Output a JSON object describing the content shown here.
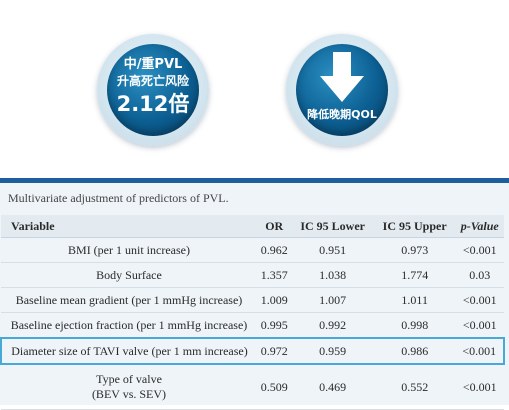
{
  "left_badge": {
    "line1": "中/重PVL",
    "line2": "升高死亡风险",
    "value": "2.12倍"
  },
  "right_badge": {
    "label": "降低晚期QOL",
    "icon": "down-arrow-icon"
  },
  "table": {
    "caption": "Multivariate adjustment of predictors of PVL.",
    "headers": [
      "Variable",
      "OR",
      "IC 95 Lower",
      "IC 95 Upper",
      "p-Value"
    ],
    "rows": [
      {
        "variable": "BMI (per 1 unit increase)",
        "or": "0.962",
        "lower": "0.951",
        "upper": "0.973",
        "p": "<0.001"
      },
      {
        "variable": "Body Surface",
        "or": "1.357",
        "lower": "1.038",
        "upper": "1.774",
        "p": "0.03"
      },
      {
        "variable": "Baseline mean gradient (per 1 mmHg increase)",
        "or": "1.009",
        "lower": "1.007",
        "upper": "1.011",
        "p": "<0.001"
      },
      {
        "variable": "Baseline ejection fraction (per 1 mmHg increase)",
        "or": "0.995",
        "lower": "0.992",
        "upper": "0.998",
        "p": "<0.001"
      },
      {
        "variable": "Diameter size of TAVI valve (per 1 mm increase)",
        "or": "0.972",
        "lower": "0.959",
        "upper": "0.986",
        "p": "<0.001"
      },
      {
        "variable": "Type of valve",
        "variable2": "(BEV vs. SEV)",
        "or": "0.509",
        "lower": "0.469",
        "upper": "0.552",
        "p": "<0.001"
      }
    ]
  },
  "colors": {
    "accent": "#1d5f9c",
    "highlight": "#48a9d6",
    "disc": "#0c5f92"
  }
}
